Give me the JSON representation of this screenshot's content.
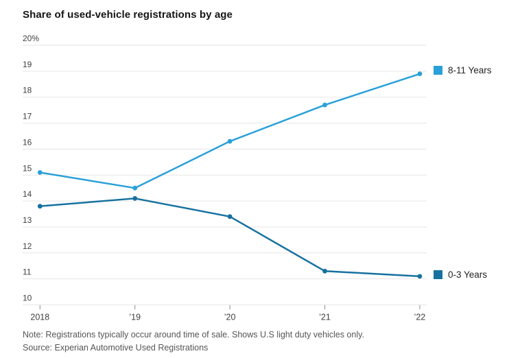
{
  "title": "Share of used-vehicle registrations by age",
  "footer": {
    "note": "Note: Registrations typically occur around time of sale. Shows U.S light duty vehicles only.",
    "source": "Source: Experian Automotive Used Registrations"
  },
  "legend": {
    "position": "right",
    "items": [
      {
        "label": "8-11 Years",
        "color": "#29a0d8"
      },
      {
        "label": "0-3 Years",
        "color": "#16719f"
      }
    ]
  },
  "chart_data": {
    "type": "line",
    "title": "Share of used-vehicle registrations by age",
    "categories": [
      "2018",
      "’19",
      "’20",
      "’21",
      "’22"
    ],
    "series": [
      {
        "name": "8-11 Years",
        "color": "#29a0d8",
        "values": [
          15.1,
          14.5,
          16.3,
          17.7,
          18.9
        ]
      },
      {
        "name": "0-3 Years",
        "color": "#16719f",
        "values": [
          13.8,
          14.1,
          13.4,
          11.3,
          11.1
        ]
      }
    ],
    "xlabel": "",
    "ylabel": "",
    "ylim": [
      10,
      20
    ],
    "y_tick_values": [
      20,
      19,
      18,
      17,
      16,
      15,
      14,
      13,
      12,
      11,
      10
    ],
    "y_tick_labels": [
      "20%",
      "19",
      "18",
      "17",
      "16",
      "15",
      "14",
      "13",
      "12",
      "11",
      "10"
    ],
    "grid": true,
    "grid_color": "#e6e6e6",
    "tick_color": "#8a8a8a",
    "axis_text_color": "#3f3f3f"
  }
}
